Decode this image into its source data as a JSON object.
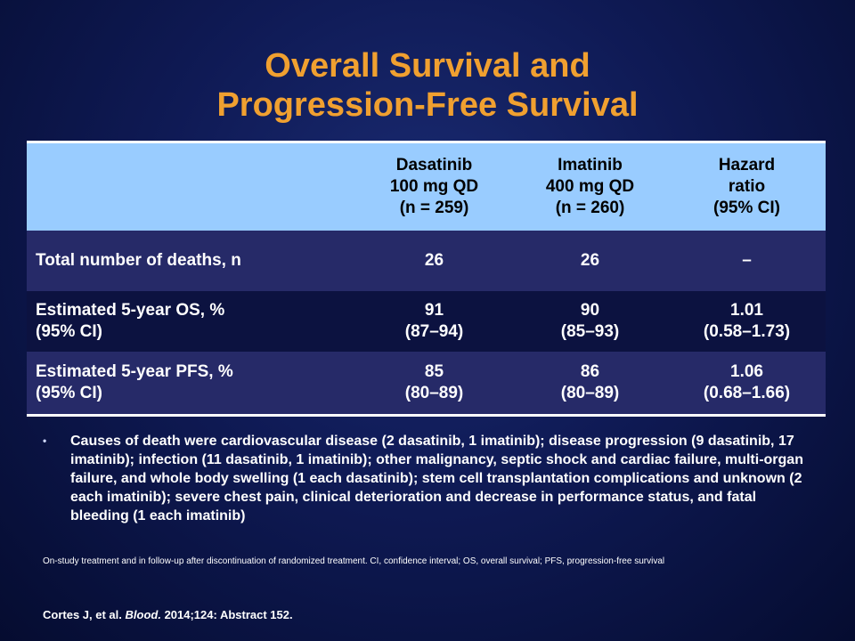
{
  "title": {
    "line1": "Overall Survival and",
    "line2": "Progression-Free Survival"
  },
  "table": {
    "header": [
      [
        "Dasatinib",
        "100 mg QD",
        "(n = 259)"
      ],
      [
        "Imatinib",
        "400 mg QD",
        "(n = 260)"
      ],
      [
        "Hazard",
        "ratio",
        "(95%  CI)"
      ]
    ],
    "rows": [
      {
        "label": [
          "Total number of deaths, n"
        ],
        "values": [
          [
            "26"
          ],
          [
            "26"
          ],
          [
            "–"
          ]
        ]
      },
      {
        "label": [
          "Estimated 5-year OS, %",
          "(95%  CI)"
        ],
        "values": [
          [
            "91",
            "(87–94)"
          ],
          [
            "90",
            "(85–93)"
          ],
          [
            "1.01",
            "(0.58–1.73)"
          ]
        ]
      },
      {
        "label": [
          "Estimated 5-year PFS, %",
          "(95%  CI)"
        ],
        "values": [
          [
            "85",
            "(80–89)"
          ],
          [
            "86",
            "(80–89)"
          ],
          [
            "1.06",
            "(0.68–1.66)"
          ]
        ]
      }
    ]
  },
  "bullet": {
    "marker": "•",
    "text": "Causes of death were cardiovascular disease (2 dasatinib, 1 imatinib); disease progression (9 dasatinib, 17 imatinib); infection (11 dasatinib, 1 imatinib); other malignancy, septic shock and cardiac failure, multi-organ failure, and whole body swelling (1 each dasatinib); stem cell transplantation complications and unknown (2 each imatinib); severe chest pain, clinical deterioration and decrease in performance status, and fatal bleeding (1 each imatinib)"
  },
  "footnote": "On-study treatment and in follow-up after discontinuation of randomized treatment. CI, confidence interval; OS, overall survival; PFS, progression-free survival",
  "citation": {
    "authors": "Cortes J, et al.",
    "journal": "Blood.",
    "details": "2014;124: Abstract 152."
  },
  "colors": {
    "title": "#f0a030",
    "header_bg": "#99ccff",
    "row_light": "#262a68",
    "row_dark": "#0c1240",
    "background": "#0f1a55"
  }
}
